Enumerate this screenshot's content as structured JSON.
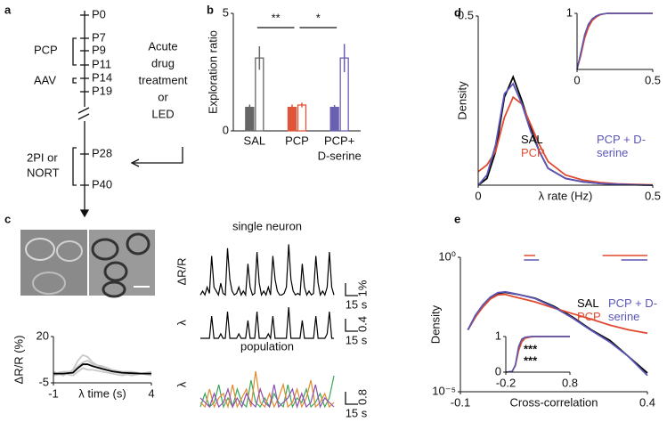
{
  "panel_labels": [
    "a",
    "b",
    "c",
    "d",
    "e"
  ],
  "timeline": {
    "ticks": [
      "P0",
      "P7",
      "P9",
      "P11",
      "P14",
      "P19",
      "P28",
      "P40"
    ],
    "pcp_label": "PCP",
    "aav_label": "AAV",
    "imaging_label": [
      "2PI or",
      "NORT"
    ],
    "treatment_label": [
      "Acute",
      "drug",
      "treatment",
      "or",
      "LED"
    ]
  },
  "chart_data": [
    {
      "type": "bar",
      "ylabel": "Exploration ratio",
      "categories": [
        [
          "SAL"
        ],
        [
          "PCP"
        ],
        [
          "PCP+",
          "D-serine"
        ]
      ],
      "colors": [
        "#666666",
        "#e0553a",
        "#6a60b0"
      ],
      "series": [
        {
          "fill": "solid",
          "values": [
            1,
            1,
            1
          ],
          "errors": [
            0.12,
            0.12,
            0.1
          ]
        },
        {
          "fill": "open",
          "values": [
            3.1,
            1.1,
            3.1
          ],
          "errors": [
            0.5,
            0.1,
            0.6
          ]
        }
      ],
      "significance": [
        {
          "label": "**",
          "between": [
            0,
            1
          ]
        },
        {
          "label": "*",
          "between": [
            1,
            2
          ]
        }
      ],
      "ylim": [
        0,
        5
      ],
      "yticks": [
        0,
        5
      ]
    },
    {
      "type": "line",
      "ylabel": "ΔR/R (%)",
      "xlabel": "λ time (s)",
      "x": [
        -1,
        -0.5,
        0,
        0.25,
        0.5,
        0.75,
        1,
        1.5,
        2,
        2.5,
        3,
        3.5,
        4
      ],
      "series": [
        {
          "color": "#c8c8c8",
          "values": [
            1,
            -1,
            2,
            7,
            10,
            9,
            6,
            3,
            1,
            0,
            -1,
            0,
            1
          ]
        },
        {
          "color": "#c8c8c8",
          "values": [
            -1,
            0,
            -1,
            1,
            3,
            2,
            2,
            1,
            0,
            -1,
            0,
            0,
            -1
          ]
        },
        {
          "color": "#c8c8c8",
          "values": [
            0,
            1,
            1,
            4,
            6,
            7,
            5,
            4,
            2,
            1,
            1,
            0,
            0
          ]
        },
        {
          "color": "#000000",
          "values": [
            0,
            0,
            0.5,
            3,
            5,
            5,
            4,
            2.5,
            1.2,
            0.5,
            0.2,
            0,
            0
          ]
        }
      ],
      "xlim": [
        -1,
        4
      ],
      "ylim": [
        -5,
        20
      ],
      "xticks": [
        -1,
        4
      ],
      "yticks": [
        -5,
        20
      ]
    },
    {
      "type": "trace",
      "title": "single neuron",
      "ylabel": "ΔR/R",
      "scale_labels": [
        "1%",
        "15 s"
      ],
      "series": [
        {
          "color": "#000000",
          "values": [
            1,
            1.5,
            1,
            2,
            1.2,
            6,
            2,
            1.5,
            1,
            2.5,
            1.2,
            1,
            7,
            3,
            1.5,
            1,
            1.2,
            2,
            1,
            1.5,
            1,
            5,
            2,
            1,
            1.2,
            6.5,
            2.5,
            1,
            1.5,
            1,
            2,
            1,
            6,
            3,
            1.5,
            1,
            1,
            1.2,
            2,
            7.5,
            3,
            1.5,
            1,
            1.2,
            1,
            5,
            2,
            1,
            1.5,
            1,
            1.2,
            6,
            2.5,
            1,
            1.5,
            1,
            2,
            6.5,
            2,
            1
          ]
        }
      ],
      "ylim": [
        0,
        8
      ]
    },
    {
      "type": "trace",
      "ylabel": "λ",
      "scale_labels": [
        "0.4",
        "15 s"
      ],
      "series": [
        {
          "color": "#000000",
          "values": [
            0,
            0,
            0,
            0,
            0,
            0.5,
            0,
            0,
            0,
            0.1,
            0,
            0,
            0.6,
            0,
            0,
            0,
            0,
            0.1,
            0,
            0,
            0,
            0.4,
            0,
            0,
            0,
            0.6,
            0,
            0,
            0,
            0,
            0.1,
            0,
            0.5,
            0,
            0,
            0,
            0,
            0,
            0,
            0.7,
            0,
            0,
            0,
            0,
            0,
            0.4,
            0,
            0,
            0,
            0,
            0,
            0.5,
            0,
            0,
            0,
            0,
            0.1,
            0.6,
            0,
            0
          ]
        }
      ],
      "ylim": [
        0,
        0.7
      ]
    },
    {
      "type": "trace",
      "title": "population",
      "ylabel": "λ",
      "scale_labels": [
        "0.8",
        "15 s"
      ],
      "series": [
        {
          "color": "#3aa65a",
          "values": [
            0.1,
            0.4,
            0.1,
            0.2,
            0.6,
            0.1,
            0.3,
            0.1,
            0.5,
            0.2,
            0.1,
            0.7,
            0.2,
            0.1,
            0.3,
            0.1,
            0.4,
            0.2,
            0.1,
            0.6,
            0.1,
            0.3,
            0.2,
            0.5,
            0.1,
            0.2,
            0.4,
            0.1,
            0.3,
            0.8
          ]
        },
        {
          "color": "#e08a2a",
          "values": [
            0.2,
            0.1,
            0.5,
            0.1,
            0.3,
            0.4,
            0.1,
            0.6,
            0.1,
            0.3,
            0.5,
            0.1,
            0.9,
            0.2,
            0.1,
            0.4,
            0.1,
            0.3,
            0.6,
            0.1,
            0.2,
            0.5,
            0.1,
            0.3,
            0.7,
            0.1,
            0.2,
            0.4,
            0.1,
            0.2
          ]
        },
        {
          "color": "#8a4fb0",
          "values": [
            0.3,
            0.2,
            0.1,
            0.4,
            0.1,
            0.2,
            0.5,
            0.1,
            0.3,
            0.1,
            0.4,
            0.2,
            0.1,
            0.5,
            0.2,
            0.1,
            0.6,
            0.1,
            0.2,
            0.3,
            0.5,
            0.1,
            0.4,
            0.1,
            0.2,
            0.6,
            0.1,
            0.3,
            0.2,
            0.1
          ]
        }
      ],
      "ylim": [
        0,
        1.2
      ]
    },
    {
      "type": "line",
      "ylabel": "Density",
      "xlabel": "λ rate (Hz)",
      "x": [
        0,
        0.025,
        0.05,
        0.075,
        0.1,
        0.125,
        0.15,
        0.175,
        0.2,
        0.25,
        0.3,
        0.35,
        0.4,
        0.45,
        0.5
      ],
      "series": [
        {
          "name": "SAL",
          "color": "#000000",
          "values": [
            0,
            0.02,
            0.1,
            0.26,
            0.32,
            0.25,
            0.17,
            0.1,
            0.05,
            0.02,
            0.01,
            0.005,
            0.003,
            0.001,
            0
          ]
        },
        {
          "name": "PCP",
          "color": "#e04a2f",
          "values": [
            0.04,
            0.06,
            0.1,
            0.2,
            0.26,
            0.24,
            0.18,
            0.12,
            0.07,
            0.03,
            0.015,
            0.008,
            0.004,
            0.002,
            0.001
          ]
        },
        {
          "name": "PCP + D-serine",
          "color": "#5b56b8",
          "values": [
            0,
            0.03,
            0.12,
            0.27,
            0.3,
            0.24,
            0.16,
            0.1,
            0.05,
            0.02,
            0.01,
            0.005,
            0.003,
            0.001,
            0
          ]
        }
      ],
      "xlim": [
        0,
        0.5
      ],
      "ylim": [
        0,
        0.5
      ],
      "xticks": [
        0,
        0.5
      ],
      "yticks": [
        0.5
      ],
      "inset": {
        "x": [
          0,
          0.025,
          0.05,
          0.075,
          0.1,
          0.125,
          0.15,
          0.175,
          0.2,
          0.25,
          0.3,
          0.35,
          0.4,
          0.45,
          0.5
        ],
        "series": [
          {
            "color": "#000000",
            "values": [
              0,
              0.3,
              0.6,
              0.8,
              0.9,
              0.95,
              0.98,
              0.99,
              1,
              1,
              1,
              1,
              1,
              1,
              1
            ]
          },
          {
            "color": "#e04a2f",
            "values": [
              0,
              0.25,
              0.55,
              0.75,
              0.87,
              0.93,
              0.97,
              0.99,
              1,
              1,
              1,
              1,
              1,
              1,
              1
            ]
          },
          {
            "color": "#5b56b8",
            "values": [
              0,
              0.3,
              0.62,
              0.81,
              0.9,
              0.95,
              0.98,
              0.99,
              1,
              1,
              1,
              1,
              1,
              1,
              1
            ]
          }
        ],
        "xlim": [
          0,
          0.5
        ],
        "ylim": [
          0,
          1
        ],
        "xticks": [
          0,
          0.5
        ],
        "yticks": [
          1
        ]
      }
    },
    {
      "type": "line",
      "ylabel": "Density",
      "xlabel": "Cross-correlation",
      "log_y": true,
      "x": [
        -0.08,
        -0.06,
        -0.04,
        -0.02,
        0,
        0.02,
        0.04,
        0.06,
        0.1,
        0.15,
        0.2,
        0.25,
        0.3,
        0.35,
        0.4
      ],
      "series": [
        {
          "name": "SAL",
          "color": "#000000",
          "values": [
            0.002,
            0.006,
            0.015,
            0.03,
            0.045,
            0.05,
            0.045,
            0.04,
            0.03,
            0.015,
            0.006,
            0.002,
            0.0008,
            0.0002,
            5e-05
          ]
        },
        {
          "name": "PCP",
          "color": "#e04a2f",
          "values": [
            0.002,
            0.006,
            0.014,
            0.028,
            0.04,
            0.042,
            0.035,
            0.03,
            0.022,
            0.013,
            0.008,
            0.005,
            0.003,
            0.002,
            0.0015
          ]
        },
        {
          "name": "PCP + D-serine",
          "color": "#5b56b8",
          "values": [
            0.002,
            0.007,
            0.017,
            0.033,
            0.048,
            0.052,
            0.046,
            0.04,
            0.029,
            0.014,
            0.0055,
            0.0019,
            0.0007,
            0.0002,
            4e-05
          ]
        }
      ],
      "significance": [
        {
          "color": "#e04a2f",
          "x": [
            0.07,
            0.1
          ]
        },
        {
          "color": "#5b56b8",
          "x": [
            0.07,
            0.11
          ]
        },
        {
          "color": "#e04a2f",
          "x": [
            0.28,
            0.4
          ]
        },
        {
          "color": "#5b56b8",
          "x": [
            0.33,
            0.4
          ]
        }
      ],
      "xlim": [
        -0.1,
        0.4
      ],
      "ylim": [
        1e-05,
        1
      ],
      "xticks": [
        -0.1,
        0.4
      ],
      "yticks": [
        {
          "value": 1e-05,
          "label": "10⁻⁵"
        },
        {
          "value": 1,
          "label": "10⁰"
        }
      ],
      "inset": {
        "x": [
          -0.2,
          -0.1,
          -0.05,
          0,
          0.05,
          0.1,
          0.2,
          0.4,
          0.8
        ],
        "series": [
          {
            "color": "#000000",
            "values": [
              0,
              0.02,
              0.2,
              0.7,
              0.92,
              0.98,
              1,
              1,
              1
            ]
          },
          {
            "color": "#e04a2f",
            "values": [
              0,
              0.02,
              0.18,
              0.6,
              0.85,
              0.95,
              0.99,
              1,
              1
            ]
          },
          {
            "color": "#5b56b8",
            "values": [
              0,
              0.02,
              0.21,
              0.72,
              0.93,
              0.98,
              1,
              1,
              1
            ]
          }
        ],
        "annotations": [
          {
            "text": "***",
            "color": "#e04a2f"
          },
          {
            "text": "***",
            "color": "#5b56b8"
          }
        ],
        "xlim": [
          -0.2,
          0.8
        ],
        "ylim": [
          0,
          1
        ],
        "xticks": [
          -0.2,
          0.8
        ],
        "yticks": [
          0,
          1
        ]
      }
    }
  ]
}
